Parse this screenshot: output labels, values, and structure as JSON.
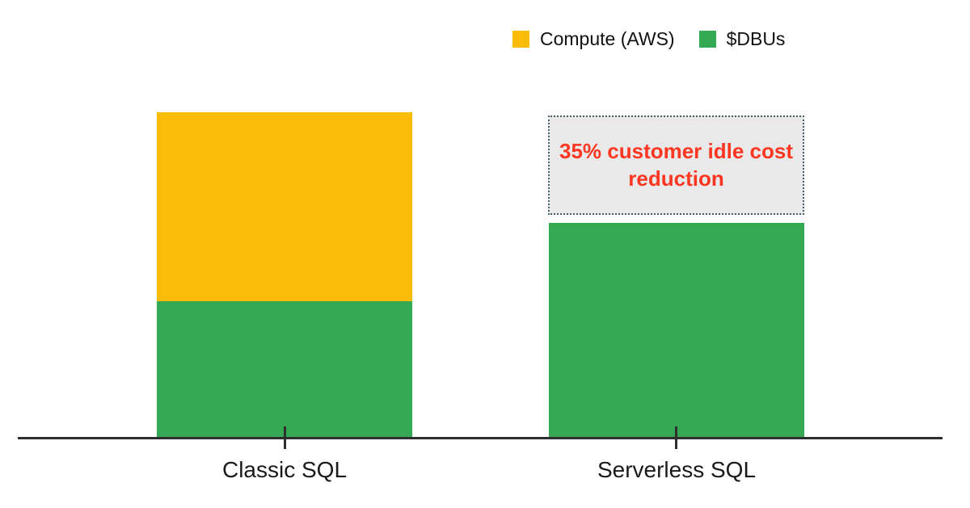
{
  "chart_data": {
    "type": "bar",
    "subtype": "stacked",
    "title": "",
    "categories": [
      "Classic SQL",
      "Serverless SQL"
    ],
    "series": [
      {
        "name": "Compute (AWS)",
        "color": "#FBBC09",
        "values": [
          58,
          0
        ]
      },
      {
        "name": "$DBUs",
        "color": "#34A853",
        "values": [
          42,
          66
        ]
      }
    ],
    "stack_order_bottom_to_top": [
      "$DBUs",
      "Compute (AWS)"
    ],
    "annotation": {
      "text": "35% customer idle cost reduction",
      "applies_to": "Serverless SQL",
      "from_value": 66,
      "to_value": 100,
      "text_color": "#FF3621",
      "fill": "#E9E9E9",
      "border_color": "#4A626E"
    },
    "value_axis": {
      "visible": false,
      "units": "relative cost (Classic SQL total = 100, values estimated from bar heights)"
    },
    "grid": "off",
    "legend_position": "top-right",
    "axis_color": "#2E2E2E",
    "label_color": "#1A1A1A"
  }
}
